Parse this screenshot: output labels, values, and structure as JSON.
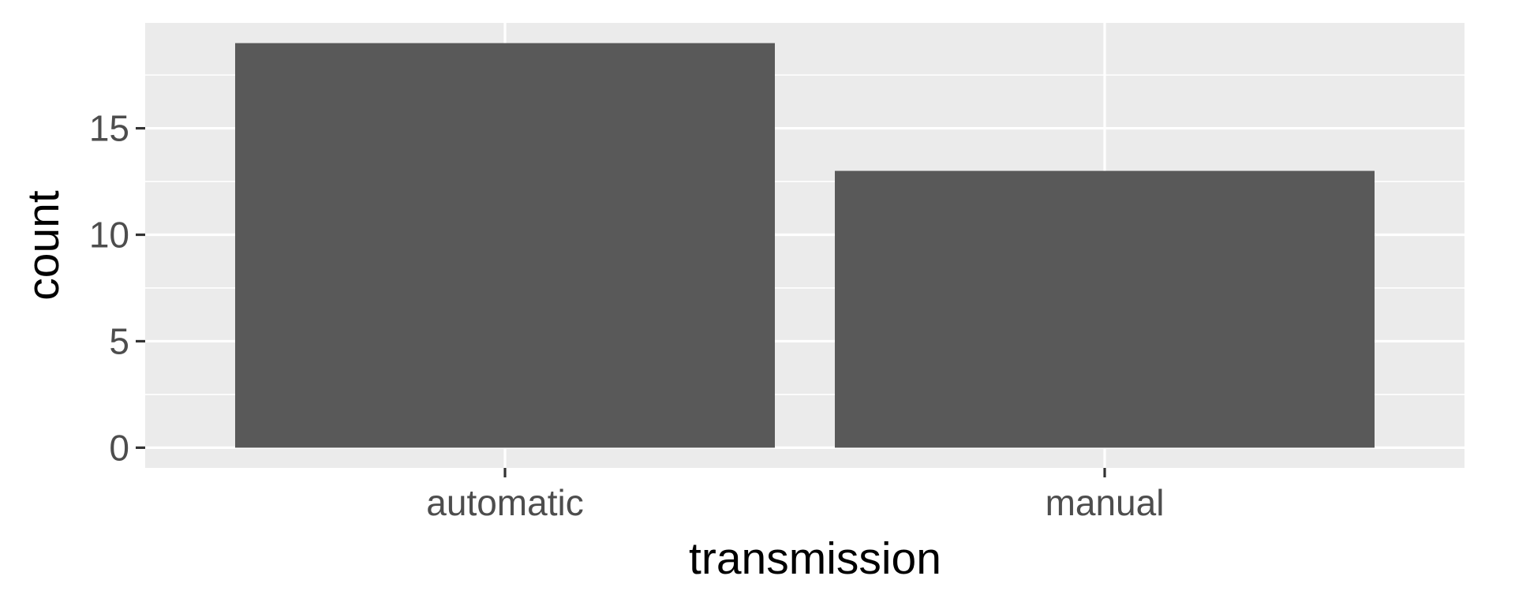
{
  "chart_data": {
    "type": "bar",
    "categories": [
      "automatic",
      "manual"
    ],
    "values": [
      19,
      13
    ],
    "xlabel": "transmission",
    "ylabel": "count",
    "ylim": [
      -0.95,
      19.95
    ],
    "yticks": [
      0,
      5,
      10,
      15
    ],
    "grid": true,
    "colors": {
      "panel": "#EBEBEB",
      "bar": "#595959",
      "grid": "#FFFFFF",
      "tick_text": "#4D4D4D",
      "title_text": "#000000"
    }
  }
}
